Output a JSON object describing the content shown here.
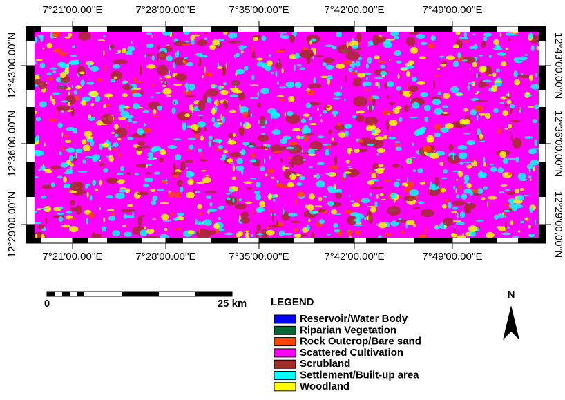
{
  "map": {
    "top_labels": [
      "7°21'00.00''E",
      "7°28'00.00''E",
      "7°35'00.00''E",
      "7°42'00.00''E",
      "7°49'00.00''E"
    ],
    "bottom_labels": [
      "7°21'00.00''E",
      "7°28'00.00''E",
      "7°35'00.00''E",
      "7°42'00.00''E",
      "7°49'00.00''E"
    ],
    "left_labels": [
      "12°43'00.00''N",
      "12°36'00.00''N",
      "12°29'00.00''N"
    ],
    "right_labels": [
      "12°43'00.00''N",
      "12°36'00.00''N",
      "12°29'00.00''N"
    ],
    "scale_bar": {
      "start": "0",
      "end": "25 km"
    },
    "legend": {
      "title": "LEGEND",
      "items": [
        {
          "label": "Reservoir/Water Body",
          "color": "#0000ff"
        },
        {
          "label": "Riparian Vegetation",
          "color": "#006633"
        },
        {
          "label": "Rock Outcrop/Bare sand",
          "color": "#ff4500"
        },
        {
          "label": "Scattered Cultivation",
          "color": "#ff00ff"
        },
        {
          "label": "Scrubland",
          "color": "#a52a2a"
        },
        {
          "label": "Settlement/Built-up area",
          "color": "#00ffff"
        },
        {
          "label": "Woodland",
          "color": "#ffff00"
        }
      ]
    },
    "north": "N"
  }
}
